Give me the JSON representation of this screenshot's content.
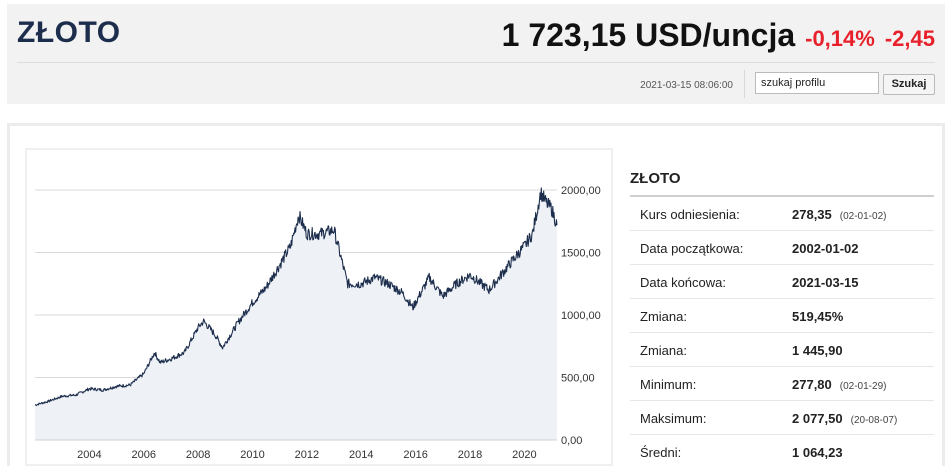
{
  "header": {
    "title": "ZŁOTO",
    "price": "1 723,15 USD/uncja",
    "change_percent": "-0,14%",
    "change_value": "-2,45",
    "timestamp": "2021-03-15 08:06:00",
    "search_value": "szukaj profilu",
    "search_button": "Szukaj"
  },
  "colors": {
    "title": "#1d2e4d",
    "negative": "#e8202b",
    "line": "#1d2e4d",
    "area": "#eef1f6"
  },
  "stats": {
    "title": "ZŁOTO",
    "rows": [
      {
        "label": "Kurs odniesienia:",
        "value": "278,35",
        "date": "(02-01-02)"
      },
      {
        "label": "Data początkowa:",
        "value": "2002-01-02",
        "date": ""
      },
      {
        "label": "Data końcowa:",
        "value": "2021-03-15",
        "date": ""
      },
      {
        "label": "Zmiana:",
        "value": "519,45%",
        "date": ""
      },
      {
        "label": "Zmiana:",
        "value": "1 445,90",
        "date": ""
      },
      {
        "label": "Minimum:",
        "value": "277,80",
        "date": "(02-01-29)"
      },
      {
        "label": "Maksimum:",
        "value": "2 077,50",
        "date": "(20-08-07)"
      },
      {
        "label": "Średni:",
        "value": "1 064,23",
        "date": ""
      }
    ]
  },
  "chart_data": {
    "type": "area",
    "title": "",
    "xlabel": "",
    "ylabel": "",
    "xlim": [
      2002.0,
      2021.2
    ],
    "ylim": [
      0,
      2000
    ],
    "y_ticks": [
      0,
      500,
      1000,
      1500,
      2000
    ],
    "y_tick_labels": [
      "0,00",
      "500,00",
      "1000,00",
      "1500,00",
      "2000,00"
    ],
    "x_ticks": [
      2004,
      2006,
      2008,
      2010,
      2012,
      2014,
      2016,
      2018,
      2020
    ],
    "x_tick_labels": [
      "2004",
      "2006",
      "2008",
      "2010",
      "2012",
      "2014",
      "2016",
      "2018",
      "2020"
    ],
    "grid": true,
    "y_axis_position": "right",
    "series": [
      {
        "x": [
          2002.0,
          2002.5,
          2003.0,
          2003.5,
          2004.0,
          2004.5,
          2005.0,
          2005.5,
          2006.0,
          2006.4,
          2006.6,
          2007.0,
          2007.5,
          2008.0,
          2008.2,
          2008.6,
          2008.9,
          2009.5,
          2010.0,
          2010.5,
          2011.0,
          2011.4,
          2011.7,
          2012.0,
          2012.5,
          2013.0,
          2013.3,
          2013.5,
          2014.0,
          2014.5,
          2015.0,
          2015.5,
          2015.9,
          2016.5,
          2017.0,
          2017.5,
          2018.0,
          2018.7,
          2019.0,
          2019.5,
          2020.0,
          2020.3,
          2020.6,
          2020.8,
          2021.0,
          2021.2
        ],
        "y": [
          280,
          310,
          350,
          360,
          410,
          400,
          430,
          440,
          530,
          700,
          620,
          650,
          700,
          900,
          950,
          850,
          740,
          950,
          1100,
          1220,
          1400,
          1550,
          1800,
          1650,
          1650,
          1680,
          1420,
          1250,
          1250,
          1300,
          1250,
          1180,
          1060,
          1300,
          1150,
          1250,
          1320,
          1200,
          1280,
          1420,
          1550,
          1650,
          1980,
          1900,
          1850,
          1720
        ]
      }
    ]
  }
}
